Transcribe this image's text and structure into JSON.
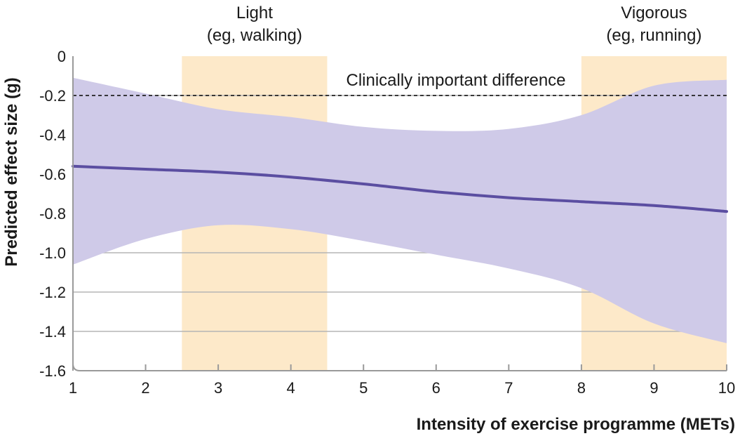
{
  "chart_data": {
    "type": "line",
    "title": "",
    "xlabel": "Intensity of exercise programme (METs)",
    "ylabel": "Predicted effect size (g)",
    "xlim": [
      1,
      10
    ],
    "ylim": [
      -1.6,
      0
    ],
    "x_ticks": [
      1,
      2,
      3,
      4,
      5,
      6,
      7,
      8,
      9,
      10
    ],
    "x_tick_labels": [
      "1",
      "2",
      "3",
      "4",
      "5",
      "6",
      "7",
      "8",
      "9",
      "10"
    ],
    "y_ticks": [
      0,
      -0.2,
      -0.4,
      -0.6,
      -0.8,
      -1.0,
      -1.2,
      -1.4,
      -1.6
    ],
    "y_tick_labels": [
      "0",
      "-0.2",
      "-0.4",
      "-0.6",
      "-0.8",
      "-1.0",
      "-1.2",
      "-1.4",
      "-1.6"
    ],
    "horizontal_gridlines": true,
    "bands": [
      {
        "name": "Light",
        "label_line1": "Light",
        "label_line2": "(eg, walking)",
        "x_start": 2.5,
        "x_end": 4.5,
        "color": "#fde9c9"
      },
      {
        "name": "Vigorous",
        "label_line1": "Vigorous",
        "label_line2": "(eg, running)",
        "x_start": 8.0,
        "x_end": 10.0,
        "color": "#fde9c9"
      }
    ],
    "reference_line": {
      "label": "Clinically important difference",
      "y": -0.2,
      "style": "dashed",
      "color": "#222222"
    },
    "series": [
      {
        "name": "Predicted effect size",
        "color": "#5b4ea1",
        "x": [
          1,
          2,
          3,
          4,
          5,
          6,
          7,
          8,
          9,
          10
        ],
        "values": [
          -0.56,
          -0.575,
          -0.59,
          -0.615,
          -0.65,
          -0.69,
          -0.72,
          -0.74,
          -0.76,
          -0.79
        ],
        "ci_color": "#cfcae8",
        "ci_upper": [
          -0.11,
          -0.19,
          -0.27,
          -0.31,
          -0.36,
          -0.38,
          -0.37,
          -0.3,
          -0.15,
          -0.12
        ],
        "ci_lower": [
          -1.06,
          -0.93,
          -0.86,
          -0.88,
          -0.94,
          -1.01,
          -1.08,
          -1.18,
          -1.36,
          -1.46
        ]
      }
    ]
  }
}
